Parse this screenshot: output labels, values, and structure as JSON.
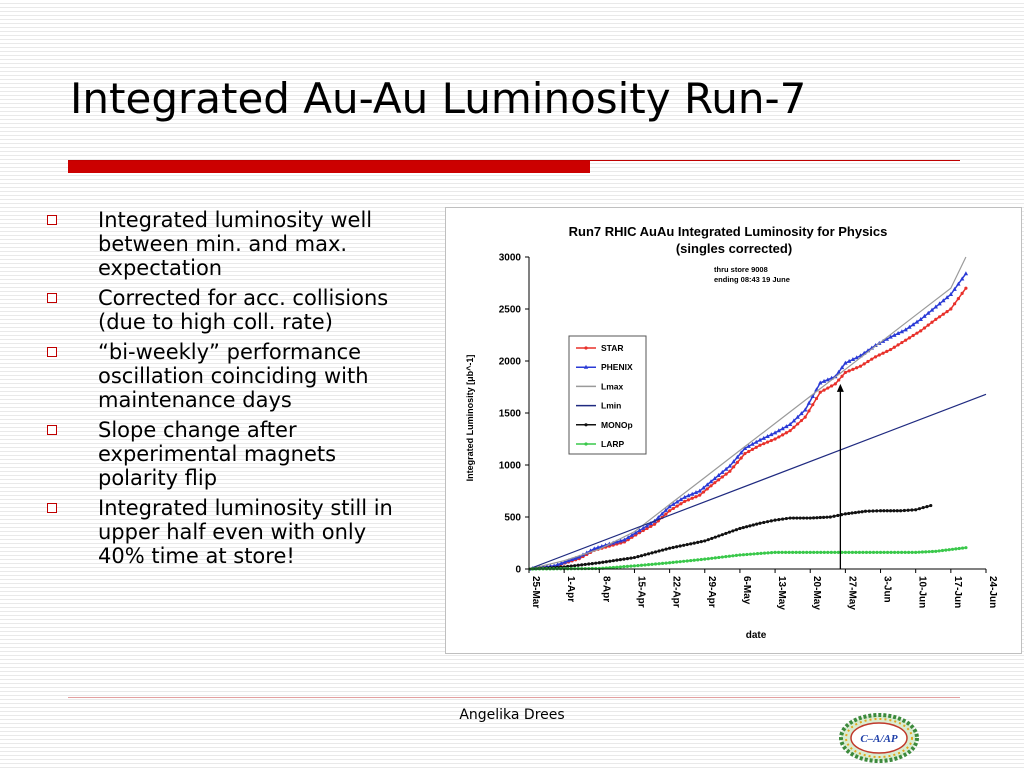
{
  "slide": {
    "title": "Integrated Au-Au Luminosity Run-7",
    "bullets": [
      "Integrated luminosity well between min. and max. expectation",
      "Corrected for acc. collisions (due to high coll. rate)",
      "“bi-weekly” performance oscillation coinciding with maintenance days",
      "Slope change after experimental magnets polarity flip",
      "Integrated luminosity still in upper half even with only 40% time at store!"
    ],
    "footer": "Angelika Drees",
    "logo_text": "C–A/AP",
    "accent_color": "#cc0000"
  },
  "chart_data": {
    "type": "line",
    "title": "Run7 RHIC AuAu   Integrated Luminosity for Physics",
    "subtitle": "(singles corrected)",
    "annotation_lines": [
      "thru store 9008",
      "ending 08:43  19 June"
    ],
    "xlabel": "date",
    "ylabel": "Integrated Luminosity [μb^-1]",
    "x_unit": "day",
    "x_ticks": [
      "25-Mar",
      "1-Apr",
      "8-Apr",
      "15-Apr",
      "22-Apr",
      "29-Apr",
      "6-May",
      "13-May",
      "20-May",
      "27-May",
      "3-Jun",
      "10-Jun",
      "17-Jun",
      "24-Jun"
    ],
    "xlim": [
      "25-Mar",
      "24-Jun"
    ],
    "ylim": [
      0,
      3000
    ],
    "y_ticks": [
      0,
      500,
      1000,
      1500,
      2000,
      2500,
      3000
    ],
    "grid": false,
    "legend_position": "upper-left",
    "arrow": {
      "from": [
        "26-May",
        0
      ],
      "to": [
        "26-May",
        1780
      ]
    },
    "series": [
      {
        "name": "STAR",
        "color": "#e8302a",
        "marker": "dot",
        "points": [
          [
            "25-Mar",
            0
          ],
          [
            "30-Mar",
            25
          ],
          [
            "4-Apr",
            100
          ],
          [
            "7-Apr",
            180
          ],
          [
            "10-Apr",
            220
          ],
          [
            "13-Apr",
            260
          ],
          [
            "16-Apr",
            350
          ],
          [
            "19-Apr",
            430
          ],
          [
            "22-Apr",
            560
          ],
          [
            "25-Apr",
            650
          ],
          [
            "28-Apr",
            710
          ],
          [
            "1-May",
            830
          ],
          [
            "4-May",
            940
          ],
          [
            "7-May",
            1110
          ],
          [
            "10-May",
            1190
          ],
          [
            "13-May",
            1250
          ],
          [
            "16-May",
            1330
          ],
          [
            "19-May",
            1460
          ],
          [
            "22-May",
            1700
          ],
          [
            "25-May",
            1780
          ],
          [
            "27-May",
            1890
          ],
          [
            "30-May",
            1950
          ],
          [
            "2-Jun",
            2040
          ],
          [
            "5-Jun",
            2110
          ],
          [
            "8-Jun",
            2200
          ],
          [
            "11-Jun",
            2290
          ],
          [
            "14-Jun",
            2400
          ],
          [
            "17-Jun",
            2500
          ],
          [
            "20-Jun",
            2700
          ]
        ]
      },
      {
        "name": "PHENIX",
        "color": "#2a3ad6",
        "marker": "triangle",
        "points": [
          [
            "25-Mar",
            0
          ],
          [
            "30-Mar",
            30
          ],
          [
            "4-Apr",
            115
          ],
          [
            "7-Apr",
            195
          ],
          [
            "10-Apr",
            240
          ],
          [
            "13-Apr",
            280
          ],
          [
            "16-Apr",
            370
          ],
          [
            "19-Apr",
            460
          ],
          [
            "22-Apr",
            600
          ],
          [
            "25-Apr",
            690
          ],
          [
            "28-Apr",
            750
          ],
          [
            "1-May",
            870
          ],
          [
            "4-May",
            990
          ],
          [
            "7-May",
            1160
          ],
          [
            "10-May",
            1240
          ],
          [
            "13-May",
            1310
          ],
          [
            "16-May",
            1390
          ],
          [
            "19-May",
            1530
          ],
          [
            "22-May",
            1790
          ],
          [
            "25-May",
            1850
          ],
          [
            "27-May",
            1980
          ],
          [
            "30-May",
            2050
          ],
          [
            "2-Jun",
            2150
          ],
          [
            "5-Jun",
            2230
          ],
          [
            "8-Jun",
            2300
          ],
          [
            "11-Jun",
            2400
          ],
          [
            "14-Jun",
            2520
          ],
          [
            "17-Jun",
            2640
          ],
          [
            "20-Jun",
            2840
          ]
        ]
      },
      {
        "name": "Lmax",
        "color": "#9a9a9a",
        "marker": "none",
        "points": [
          [
            "25-Mar",
            0
          ],
          [
            "1-Apr",
            80
          ],
          [
            "8-Apr",
            190
          ],
          [
            "15-Apr",
            360
          ],
          [
            "22-Apr",
            620
          ],
          [
            "29-Apr",
            880
          ],
          [
            "6-May",
            1140
          ],
          [
            "13-May",
            1400
          ],
          [
            "20-May",
            1660
          ],
          [
            "27-May",
            1920
          ],
          [
            "3-Jun",
            2180
          ],
          [
            "10-Jun",
            2440
          ],
          [
            "17-Jun",
            2700
          ],
          [
            "20-Jun",
            3000
          ]
        ]
      },
      {
        "name": "Lmin",
        "color": "#1f2a80",
        "marker": "none",
        "points": [
          [
            "25-Mar",
            0
          ],
          [
            "24-Jun",
            1680
          ]
        ]
      },
      {
        "name": "MONOp",
        "color": "#111111",
        "marker": "dot",
        "points": [
          [
            "25-Mar",
            0
          ],
          [
            "1-Apr",
            20
          ],
          [
            "8-Apr",
            60
          ],
          [
            "15-Apr",
            110
          ],
          [
            "22-Apr",
            200
          ],
          [
            "29-Apr",
            270
          ],
          [
            "6-May",
            390
          ],
          [
            "10-May",
            440
          ],
          [
            "13-May",
            470
          ],
          [
            "16-May",
            490
          ],
          [
            "20-May",
            490
          ],
          [
            "24-May",
            500
          ],
          [
            "27-May",
            530
          ],
          [
            "31-May",
            555
          ],
          [
            "3-Jun",
            560
          ],
          [
            "7-Jun",
            560
          ],
          [
            "10-Jun",
            570
          ],
          [
            "13-Jun",
            610
          ]
        ]
      },
      {
        "name": "LARP",
        "color": "#39c84a",
        "marker": "dot",
        "points": [
          [
            "25-Mar",
            0
          ],
          [
            "8-Apr",
            5
          ],
          [
            "15-Apr",
            30
          ],
          [
            "22-Apr",
            60
          ],
          [
            "29-Apr",
            95
          ],
          [
            "6-May",
            135
          ],
          [
            "13-May",
            160
          ],
          [
            "20-May",
            160
          ],
          [
            "27-May",
            160
          ],
          [
            "3-Jun",
            160
          ],
          [
            "10-Jun",
            160
          ],
          [
            "14-Jun",
            170
          ],
          [
            "20-Jun",
            205
          ]
        ]
      }
    ]
  }
}
